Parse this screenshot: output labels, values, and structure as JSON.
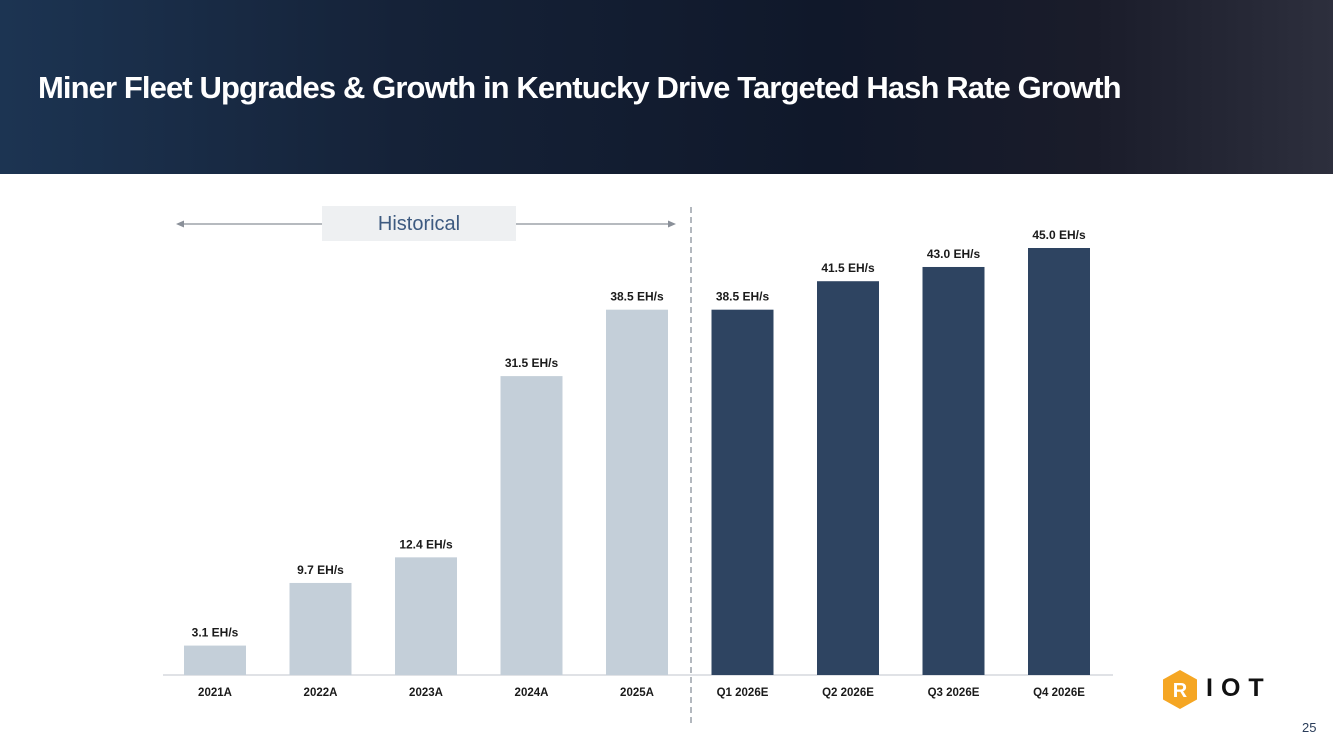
{
  "slide": {
    "title": "Miner Fleet Upgrades & Growth in Kentucky Drive Targeted Hash Rate Growth",
    "page_number": "25",
    "logo_text": "IOT",
    "logo_mark": "R"
  },
  "colors": {
    "historical_bar": "#c4cfd9",
    "projected_bar": "#2e4461",
    "label_text": "#1a1a1a",
    "divider": "#9aa0a8",
    "historical_box": "#eef0f2",
    "historical_text": "#3d5a80",
    "logo_hexagon": "#f5a623"
  },
  "chart_data": {
    "type": "bar",
    "title": "",
    "xlabel": "",
    "ylabel": "",
    "unit": "EH/s",
    "ylim": [
      0,
      45
    ],
    "grid": false,
    "categories": [
      "2021A",
      "2022A",
      "2023A",
      "2024A",
      "2025A",
      "Q1 2026E",
      "Q2 2026E",
      "Q3 2026E",
      "Q4 2026E"
    ],
    "values": [
      3.1,
      9.7,
      12.4,
      31.5,
      38.5,
      38.5,
      41.5,
      43.0,
      45.0
    ],
    "labels": [
      "3.1 EH/s",
      "9.7 EH/s",
      "12.4 EH/s",
      "31.5 EH/s",
      "38.5 EH/s",
      "38.5 EH/s",
      "41.5 EH/s",
      "43.0 EH/s",
      "45.0 EH/s"
    ],
    "period": [
      "historical",
      "historical",
      "historical",
      "historical",
      "historical",
      "projected",
      "projected",
      "projected",
      "projected"
    ],
    "annotation": "Historical"
  }
}
